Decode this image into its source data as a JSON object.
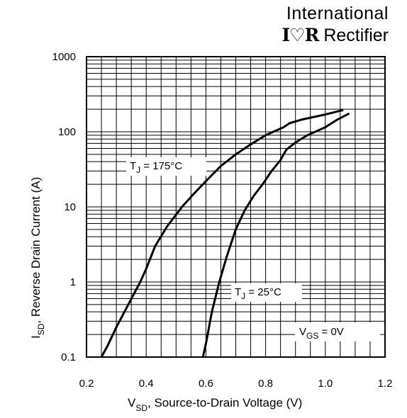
{
  "brand": {
    "line1": "International",
    "logo": "I♡R",
    "line2": "Rectifier"
  },
  "chart_data": {
    "type": "line",
    "xlabel": {
      "main": "V",
      "sub": "SD",
      "rest": ", Source-to-Drain Voltage (V)"
    },
    "ylabel": {
      "main": "I",
      "sub": "SD",
      "rest": ", Reverse Drain Current (A)"
    },
    "x_ticks": [
      "0.2",
      "0.4",
      "0.6",
      "0.8",
      "1.0",
      "1.2"
    ],
    "y_ticks": [
      "0.1",
      "1",
      "10",
      "100",
      "1000"
    ],
    "xlim": [
      0.2,
      1.2
    ],
    "ylim": [
      0.1,
      1000
    ],
    "y_scale": "log",
    "grid": true,
    "annotations": [
      {
        "id": "tj175",
        "main": "T",
        "sub": "J",
        "rest": " = 175°C"
      },
      {
        "id": "tj25",
        "main": "T",
        "sub": "J",
        "rest": " = 25°C"
      },
      {
        "id": "vgs",
        "main": "V",
        "sub": "GS",
        "rest": " = 0V"
      }
    ],
    "series": [
      {
        "color": "#000000",
        "x": [
          0.25,
          0.27,
          0.3,
          0.34,
          0.38,
          0.4,
          0.43,
          0.47,
          0.52,
          0.56,
          0.6,
          0.65,
          0.7,
          0.75,
          0.8,
          0.86,
          0.88,
          0.92,
          1.0,
          1.06
        ],
        "y": [
          0.1,
          0.14,
          0.25,
          0.5,
          1.0,
          1.5,
          3.0,
          5.5,
          10,
          15,
          22,
          35,
          50,
          68,
          90,
          115,
          130,
          145,
          170,
          195
        ]
      },
      {
        "color": "#000000",
        "x": [
          0.59,
          0.6,
          0.62,
          0.645,
          0.67,
          0.7,
          0.73,
          0.76,
          0.79,
          0.82,
          0.85,
          0.86,
          0.87,
          0.9,
          0.94,
          1.0,
          1.04,
          1.08
        ],
        "y": [
          0.1,
          0.15,
          0.4,
          1.0,
          2.2,
          5.0,
          9.0,
          14,
          20,
          30,
          42,
          50,
          58,
          72,
          90,
          115,
          145,
          175
        ]
      }
    ]
  }
}
